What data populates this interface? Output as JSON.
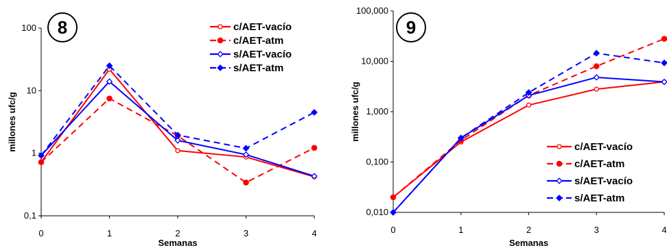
{
  "chart_data": [
    {
      "type": "line",
      "badge": "8",
      "xlabel": "Semanas",
      "ylabel": "millones ufc/g",
      "yscale": "log",
      "ylim": [
        0.1,
        100
      ],
      "x": [
        0,
        1,
        2,
        3,
        4
      ],
      "x_tick_labels": [
        "0",
        "1",
        "2",
        "3",
        "4"
      ],
      "y_ticks": [
        0.1,
        1,
        10,
        100
      ],
      "y_tick_labels": [
        "0,1",
        "1",
        "10",
        "100"
      ],
      "legend_position": "top-right",
      "series": [
        {
          "name": "c/AET-vacío",
          "color": "#ff0000",
          "dash": "solid",
          "marker": "open-circle",
          "values": [
            0.72,
            22,
            1.1,
            0.87,
            0.42
          ]
        },
        {
          "name": "c/AET-atm",
          "color": "#ff0000",
          "dash": "dashed",
          "marker": "filled-circle",
          "values": [
            0.72,
            7.5,
            1.9,
            0.34,
            1.22
          ]
        },
        {
          "name": "s/AET-vacío",
          "color": "#0000ff",
          "dash": "solid",
          "marker": "open-diamond",
          "values": [
            0.92,
            14,
            1.6,
            0.95,
            0.43
          ]
        },
        {
          "name": "s/AET-atm",
          "color": "#0000ff",
          "dash": "dashed",
          "marker": "filled-diamond",
          "values": [
            0.92,
            25,
            1.95,
            1.2,
            4.5
          ]
        }
      ]
    },
    {
      "type": "line",
      "badge": "9",
      "xlabel": "Semanas",
      "ylabel": "millones ufc/g",
      "yscale": "log",
      "ylim": [
        0.01,
        100
      ],
      "x": [
        0,
        1,
        2,
        3,
        4
      ],
      "x_tick_labels": [
        "0",
        "1",
        "2",
        "3",
        "4"
      ],
      "y_ticks": [
        0.01,
        0.1,
        1,
        10,
        100
      ],
      "y_tick_labels": [
        "0,010",
        "0,100",
        "1,000",
        "10,000",
        "100,000"
      ],
      "legend_position": "bottom-right",
      "series": [
        {
          "name": "c/AET-vacío",
          "color": "#ff0000",
          "dash": "solid",
          "marker": "open-circle",
          "values": [
            0.02,
            0.25,
            1.35,
            2.8,
            3.9
          ]
        },
        {
          "name": "c/AET-atm",
          "color": "#ff0000",
          "dash": "dashed",
          "marker": "filled-circle",
          "values": [
            0.02,
            0.27,
            2.1,
            8,
            28
          ]
        },
        {
          "name": "s/AET-vacío",
          "color": "#0000ff",
          "dash": "solid",
          "marker": "open-diamond",
          "values": [
            0.01,
            0.3,
            2.1,
            4.8,
            3.9
          ]
        },
        {
          "name": "s/AET-atm",
          "color": "#0000ff",
          "dash": "dashed",
          "marker": "filled-diamond",
          "values": [
            0.01,
            0.3,
            2.4,
            14.5,
            9.3
          ]
        }
      ]
    }
  ]
}
